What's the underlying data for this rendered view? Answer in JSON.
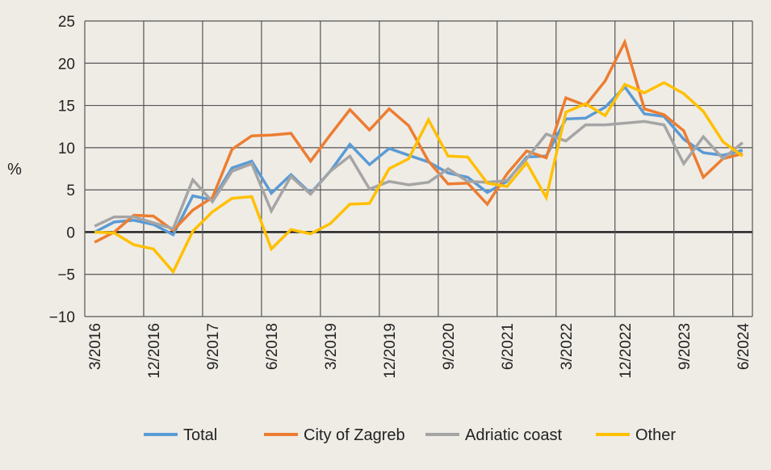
{
  "chart_data": {
    "type": "line",
    "title": "",
    "xlabel": "",
    "ylabel": "%",
    "ylim": [
      -10,
      25
    ],
    "yticks": [
      -10,
      -5,
      0,
      5,
      10,
      15,
      20,
      25
    ],
    "grid": true,
    "legend_position": "bottom",
    "categories": [
      "3/2016",
      "6/2016",
      "9/2016",
      "12/2016",
      "3/2017",
      "6/2017",
      "9/2017",
      "12/2017",
      "3/2018",
      "6/2018",
      "9/2018",
      "12/2018",
      "3/2019",
      "6/2019",
      "9/2019",
      "12/2019",
      "3/2020",
      "6/2020",
      "9/2020",
      "12/2020",
      "3/2021",
      "6/2021",
      "9/2021",
      "12/2021",
      "3/2022",
      "6/2022",
      "9/2022",
      "12/2022",
      "3/2023",
      "6/2023",
      "9/2023",
      "12/2023",
      "3/2024",
      "6/2024"
    ],
    "tick_labels": [
      "3/2016",
      "12/2016",
      "9/2017",
      "6/2018",
      "3/2019",
      "12/2019",
      "9/2020",
      "6/2021",
      "3/2022",
      "12/2022",
      "9/2023",
      "6/2024"
    ],
    "series": [
      {
        "name": "Total",
        "color": "#5b9bd5",
        "values": [
          0.0,
          1.2,
          1.4,
          0.9,
          -0.3,
          4.3,
          3.8,
          7.6,
          8.4,
          4.6,
          6.8,
          4.6,
          7.2,
          10.4,
          8.0,
          9.9,
          9.1,
          8.3,
          7.0,
          6.5,
          4.7,
          6.0,
          8.9,
          9.0,
          13.4,
          13.5,
          14.8,
          17.2,
          14.0,
          13.7,
          11.0,
          9.4,
          9.1,
          9.7
        ]
      },
      {
        "name": "City of Zagreb",
        "color": "#ed7d31",
        "values": [
          -1.2,
          0.0,
          2.0,
          1.9,
          0.2,
          2.6,
          4.1,
          9.8,
          11.4,
          11.5,
          11.7,
          8.4,
          11.5,
          14.5,
          12.1,
          14.6,
          12.6,
          8.4,
          5.7,
          5.8,
          3.3,
          6.9,
          9.6,
          8.8,
          15.9,
          15.0,
          17.9,
          22.5,
          14.6,
          13.9,
          12.0,
          6.5,
          8.7,
          9.3
        ]
      },
      {
        "name": "Adriatic coast",
        "color": "#a5a5a5",
        "values": [
          0.7,
          1.8,
          1.8,
          1.1,
          0.4,
          6.2,
          3.6,
          7.2,
          8.1,
          2.5,
          6.6,
          4.5,
          7.2,
          9.0,
          5.1,
          6.0,
          5.6,
          5.9,
          7.5,
          6.0,
          5.9,
          6.1,
          8.7,
          11.6,
          10.8,
          12.7,
          12.7,
          12.9,
          13.1,
          12.7,
          8.1,
          11.3,
          8.7,
          10.6
        ]
      },
      {
        "name": "Other",
        "color": "#ffc000",
        "values": [
          0.0,
          -0.1,
          -1.5,
          -2.0,
          -4.7,
          0.1,
          2.4,
          4.0,
          4.2,
          -2.0,
          0.3,
          -0.2,
          1.0,
          3.3,
          3.4,
          7.5,
          8.7,
          13.3,
          9.0,
          8.9,
          5.8,
          5.4,
          8.2,
          4.1,
          14.2,
          15.2,
          13.8,
          17.5,
          16.5,
          17.7,
          16.4,
          14.3,
          10.7,
          9.0
        ]
      }
    ]
  }
}
